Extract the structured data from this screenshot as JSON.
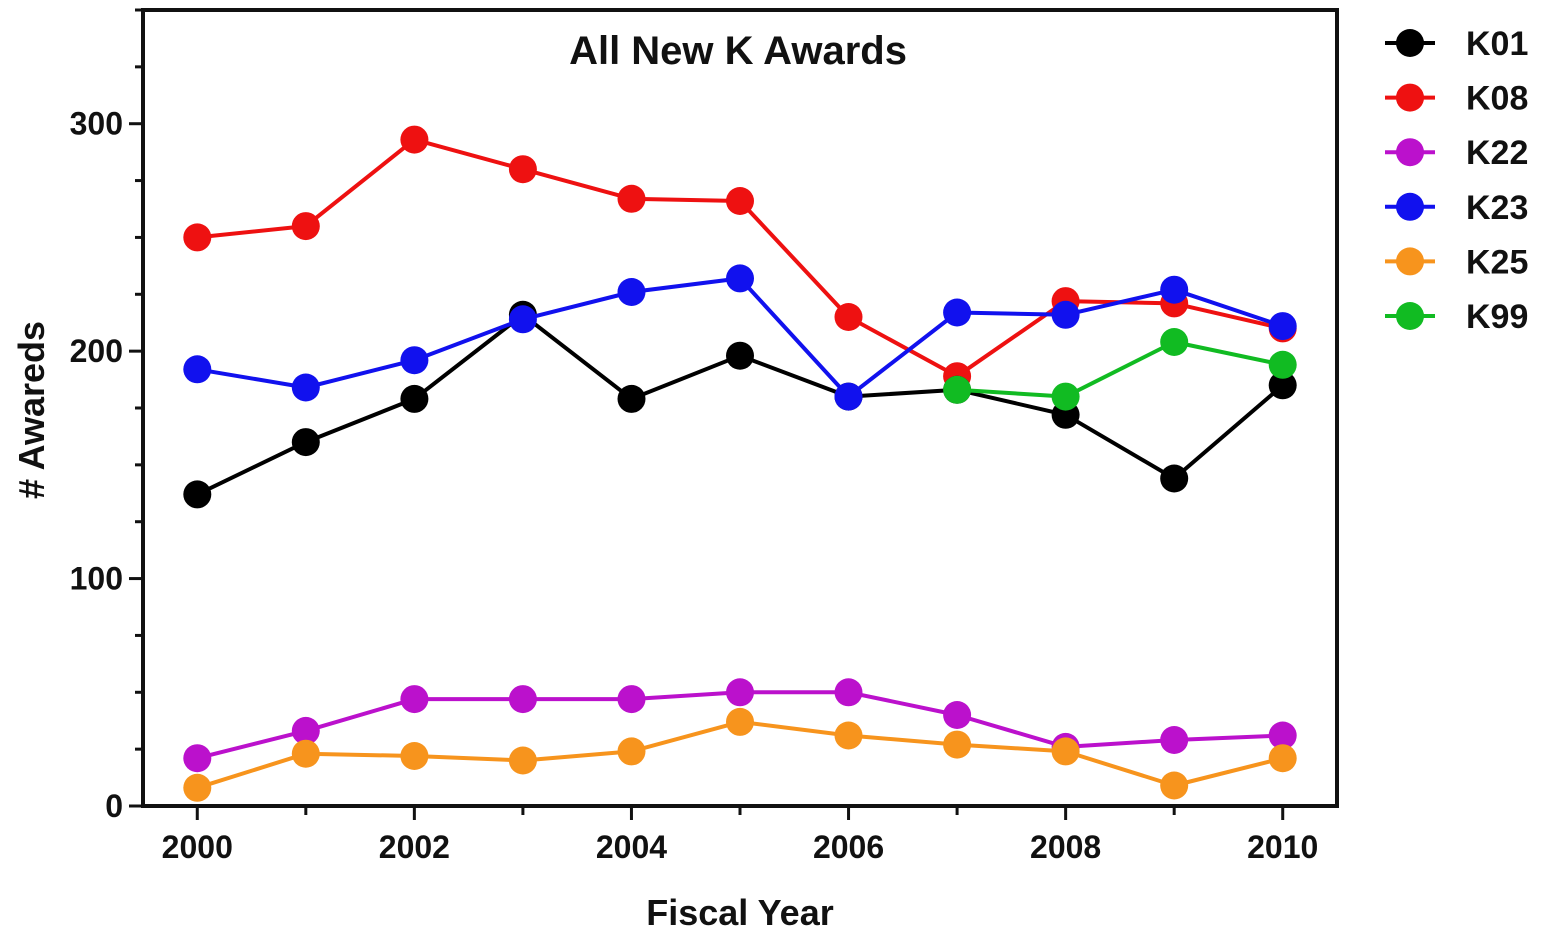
{
  "chart_data": {
    "type": "line",
    "title": "All New K Awards",
    "xlabel": "Fiscal Year",
    "ylabel": "# Awareds",
    "xlim": [
      1999.5,
      2010.5
    ],
    "ylim": [
      0,
      350
    ],
    "x_ticks": [
      2000,
      2002,
      2004,
      2006,
      2008,
      2010
    ],
    "y_ticks": [
      0,
      100,
      200,
      300
    ],
    "grid": false,
    "legend_position": "right-top",
    "series": [
      {
        "name": "K01",
        "color": "#000000",
        "points": [
          {
            "x": 2000,
            "y": 137
          },
          {
            "x": 2001,
            "y": 160
          },
          {
            "x": 2002,
            "y": 179
          },
          {
            "x": 2003,
            "y": 216
          },
          {
            "x": 2004,
            "y": 179
          },
          {
            "x": 2005,
            "y": 198
          },
          {
            "x": 2006,
            "y": 180
          },
          {
            "x": 2007,
            "y": 183
          },
          {
            "x": 2008,
            "y": 172
          },
          {
            "x": 2009,
            "y": 144
          },
          {
            "x": 2010,
            "y": 185
          }
        ]
      },
      {
        "name": "K08",
        "color": "#ee1111",
        "points": [
          {
            "x": 2000,
            "y": 250
          },
          {
            "x": 2001,
            "y": 255
          },
          {
            "x": 2002,
            "y": 293
          },
          {
            "x": 2003,
            "y": 280
          },
          {
            "x": 2004,
            "y": 267
          },
          {
            "x": 2005,
            "y": 266
          },
          {
            "x": 2006,
            "y": 215
          },
          {
            "x": 2007,
            "y": 189
          },
          {
            "x": 2008,
            "y": 222
          },
          {
            "x": 2009,
            "y": 221
          },
          {
            "x": 2010,
            "y": 210
          }
        ]
      },
      {
        "name": "K22",
        "color": "#bb11cc",
        "points": [
          {
            "x": 2000,
            "y": 21
          },
          {
            "x": 2001,
            "y": 33
          },
          {
            "x": 2002,
            "y": 47
          },
          {
            "x": 2003,
            "y": 47
          },
          {
            "x": 2004,
            "y": 47
          },
          {
            "x": 2005,
            "y": 50
          },
          {
            "x": 2006,
            "y": 50
          },
          {
            "x": 2007,
            "y": 40
          },
          {
            "x": 2008,
            "y": 26
          },
          {
            "x": 2009,
            "y": 29
          },
          {
            "x": 2010,
            "y": 31
          }
        ]
      },
      {
        "name": "K23",
        "color": "#1111ee",
        "points": [
          {
            "x": 2000,
            "y": 192
          },
          {
            "x": 2001,
            "y": 184
          },
          {
            "x": 2002,
            "y": 196
          },
          {
            "x": 2003,
            "y": 214
          },
          {
            "x": 2004,
            "y": 226
          },
          {
            "x": 2005,
            "y": 232
          },
          {
            "x": 2006,
            "y": 180
          },
          {
            "x": 2007,
            "y": 217
          },
          {
            "x": 2008,
            "y": 216
          },
          {
            "x": 2009,
            "y": 227
          },
          {
            "x": 2010,
            "y": 211
          }
        ]
      },
      {
        "name": "K25",
        "color": "#f7941d",
        "points": [
          {
            "x": 2000,
            "y": 8
          },
          {
            "x": 2001,
            "y": 23
          },
          {
            "x": 2002,
            "y": 22
          },
          {
            "x": 2003,
            "y": 20
          },
          {
            "x": 2004,
            "y": 24
          },
          {
            "x": 2005,
            "y": 37
          },
          {
            "x": 2006,
            "y": 31
          },
          {
            "x": 2007,
            "y": 27
          },
          {
            "x": 2008,
            "y": 24
          },
          {
            "x": 2009,
            "y": 9
          },
          {
            "x": 2010,
            "y": 21
          }
        ]
      },
      {
        "name": "K99",
        "color": "#11bb22",
        "points": [
          {
            "x": 2007,
            "y": 183
          },
          {
            "x": 2008,
            "y": 180
          },
          {
            "x": 2009,
            "y": 204
          },
          {
            "x": 2010,
            "y": 194
          }
        ]
      }
    ]
  }
}
